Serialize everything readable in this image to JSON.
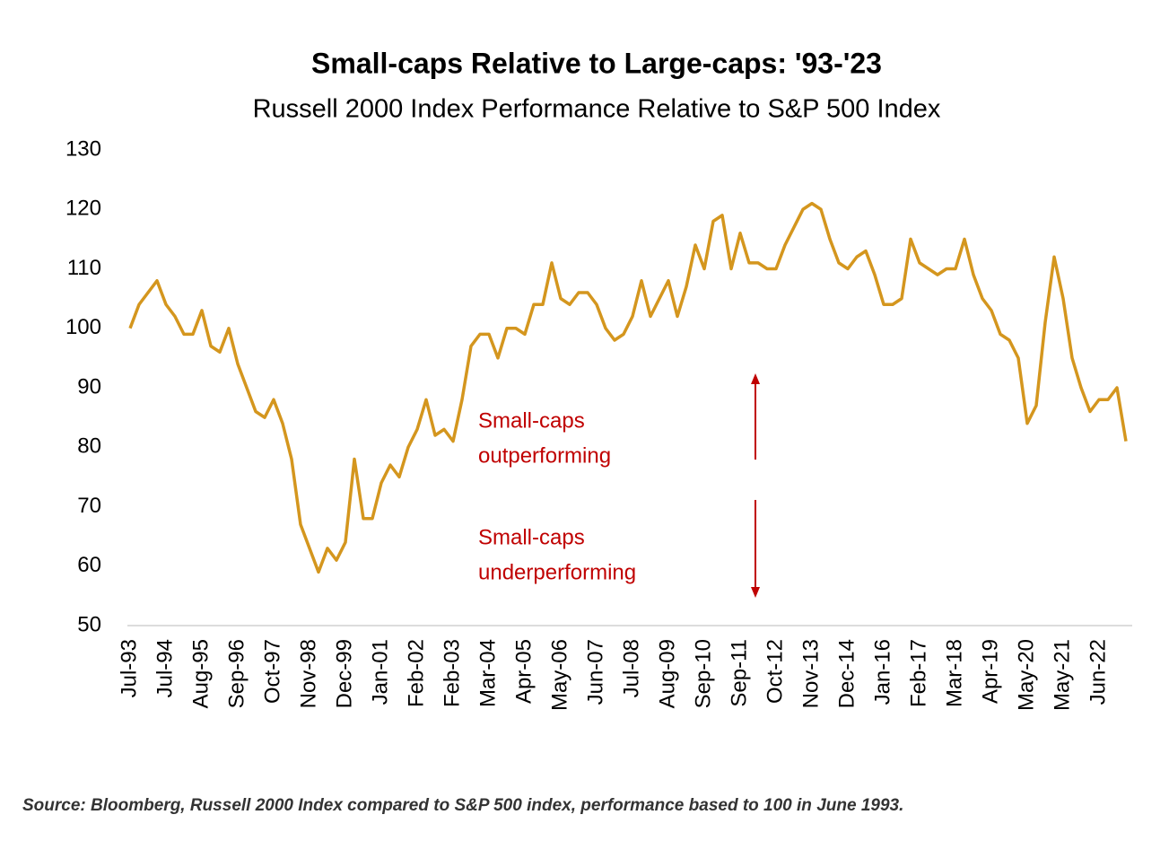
{
  "chart_data": {
    "type": "line",
    "title": "Small-caps Relative to Large-caps: '93-'23",
    "subtitle": "Russell 2000 Index Performance Relative to S&P 500 Index",
    "source": "Source: Bloomberg, Russell 2000 Index compared to S&P 500 index, performance based to 100 in June 1993.",
    "annotations": [
      [
        "Small-caps",
        "outperforming"
      ],
      [
        "Small-caps",
        "underperforming"
      ]
    ],
    "categories": [
      "Jul-93",
      null,
      null,
      null,
      "Jul-94",
      null,
      null,
      null,
      "Aug-95",
      null,
      null,
      null,
      "Sep-96",
      null,
      null,
      null,
      "Oct-97",
      null,
      null,
      null,
      "Nov-98",
      null,
      null,
      null,
      "Dec-99",
      null,
      null,
      null,
      "Jan-01",
      null,
      null,
      null,
      "Feb-02",
      null,
      null,
      null,
      "Feb-03",
      null,
      null,
      null,
      "Mar-04",
      null,
      null,
      null,
      "Apr-05",
      null,
      null,
      null,
      "May-06",
      null,
      null,
      null,
      "Jun-07",
      null,
      null,
      null,
      "Jul-08",
      null,
      null,
      null,
      "Aug-09",
      null,
      null,
      null,
      "Sep-10",
      null,
      null,
      null,
      "Sep-11",
      null,
      null,
      null,
      "Oct-12",
      null,
      null,
      null,
      "Nov-13",
      null,
      null,
      null,
      "Dec-14",
      null,
      null,
      null,
      "Jan-16",
      null,
      null,
      null,
      "Feb-17",
      null,
      null,
      null,
      "Mar-18",
      null,
      null,
      null,
      "Apr-19",
      null,
      null,
      null,
      "May-20",
      null,
      null,
      null,
      "May-21",
      null,
      null,
      null,
      "Jun-22",
      null,
      null,
      null
    ],
    "series": [
      {
        "name": "Russell 2000 relative to S&P 500",
        "color": "#d4961e",
        "values": [
          100,
          104,
          106,
          108,
          104,
          102,
          99,
          99,
          103,
          97,
          96,
          100,
          94,
          90,
          86,
          85,
          88,
          84,
          78,
          67,
          63,
          59,
          63,
          61,
          64,
          78,
          68,
          68,
          74,
          77,
          75,
          80,
          83,
          88,
          82,
          83,
          81,
          88,
          97,
          99,
          99,
          95,
          100,
          100,
          99,
          104,
          104,
          111,
          105,
          104,
          106,
          106,
          104,
          100,
          98,
          99,
          102,
          108,
          102,
          105,
          108,
          102,
          107,
          114,
          110,
          118,
          119,
          110,
          116,
          111,
          111,
          110,
          110,
          114,
          117,
          120,
          121,
          120,
          115,
          111,
          110,
          112,
          113,
          109,
          104,
          104,
          105,
          115,
          111,
          110,
          109,
          110,
          110,
          115,
          109,
          105,
          103,
          99,
          98,
          95,
          84,
          87,
          101,
          112,
          105,
          95,
          90,
          86,
          88,
          88,
          90,
          81
        ]
      }
    ],
    "ylim": [
      50,
      130
    ],
    "yticks": [
      50,
      60,
      70,
      80,
      90,
      100,
      110,
      120,
      130
    ],
    "grid": false
  }
}
